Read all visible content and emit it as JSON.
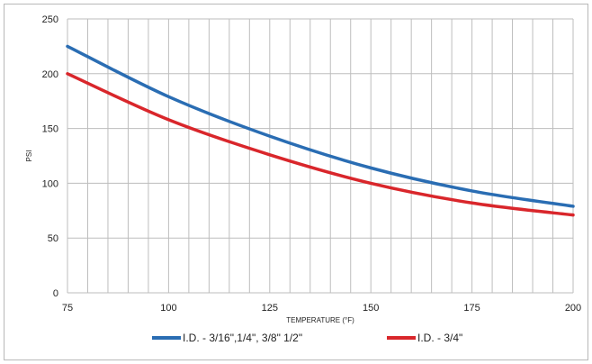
{
  "chart_data": {
    "type": "line",
    "xlabel": "TEMPERATURE (°F)",
    "ylabel": "PSI",
    "xlim": [
      75,
      200
    ],
    "ylim": [
      0,
      250
    ],
    "xticks": [
      75,
      100,
      125,
      150,
      175,
      200
    ],
    "yticks": [
      0,
      50,
      100,
      150,
      200,
      250
    ],
    "x_minor_step": 5,
    "grid": true,
    "legend_position": "bottom",
    "series": [
      {
        "name": "I.D. - 3/16\",1/4\", 3/8\" 1/2\"",
        "color": "#2a6db3",
        "x": [
          75,
          100,
          125,
          150,
          175,
          200
        ],
        "y": [
          225,
          179,
          143,
          114,
          93,
          79
        ]
      },
      {
        "name": "I.D. - 3/4\"",
        "color": "#d9262b",
        "x": [
          75,
          100,
          125,
          150,
          175,
          200
        ],
        "y": [
          200,
          158,
          126,
          100,
          82,
          71
        ]
      }
    ]
  }
}
